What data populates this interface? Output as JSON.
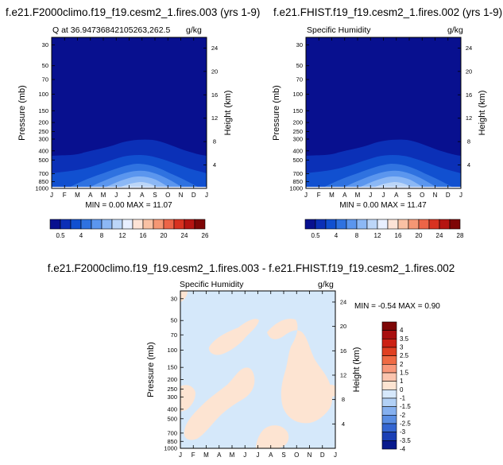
{
  "chart_data": [
    {
      "type": "heatmap",
      "title": "f.e21.F2000climo.f19_f19.cesm2_1.fires.003 (yrs 1-9)",
      "left_label": "Q at 36.947368421052​63,262.5",
      "right_label": "g/kg",
      "ylabel": "Pressure (mb)",
      "y2label": "Height (km)",
      "x_ticks": [
        "J",
        "F",
        "M",
        "A",
        "M",
        "J",
        "J",
        "A",
        "S",
        "O",
        "N",
        "D",
        "J"
      ],
      "y_ticks": [
        "30",
        "50",
        "70",
        "100",
        "150",
        "200",
        "250",
        "300",
        "400",
        "500",
        "700",
        "850",
        "1000"
      ],
      "y2_ticks": [
        "24",
        "20",
        "16",
        "12",
        "8",
        "4"
      ],
      "min_max": "MIN =   0.00 MAX =  11.07",
      "min": 0.0,
      "max": 11.07,
      "colorbar_labels": [
        "0.5",
        "4",
        "8",
        "12",
        "16",
        "20",
        "24",
        "26"
      ]
    },
    {
      "type": "heatmap",
      "title": "f.e21.FHIST.f19_f19.cesm2_1.fires.002 (yrs 1-9)",
      "left_label": "Specific Humidity",
      "right_label": "g/kg",
      "ylabel": "Pressure (mb)",
      "y2label": "Height (km)",
      "x_ticks": [
        "J",
        "F",
        "M",
        "A",
        "M",
        "J",
        "J",
        "A",
        "S",
        "O",
        "N",
        "D",
        "J"
      ],
      "y_ticks": [
        "30",
        "50",
        "70",
        "100",
        "150",
        "200",
        "250",
        "300",
        "400",
        "500",
        "700",
        "850",
        "1000"
      ],
      "y2_ticks": [
        "24",
        "20",
        "16",
        "12",
        "8",
        "4"
      ],
      "min_max": "MIN =   0.00 MAX =  11.47",
      "min": 0.0,
      "max": 11.47,
      "colorbar_labels": [
        "0.5",
        "4",
        "8",
        "12",
        "16",
        "20",
        "24",
        "28"
      ]
    },
    {
      "type": "heatmap",
      "title": "f.e21.F2000climo.f19_f19.cesm2_1.fires.003 - f.e21.FHIST.f19_f19.cesm2_1.fires.002",
      "left_label": "Specific Humidity",
      "right_label": "g/kg",
      "ylabel": "Pressure (mb)",
      "y2label": "Height (km)",
      "x_ticks": [
        "J",
        "F",
        "M",
        "A",
        "M",
        "J",
        "J",
        "A",
        "S",
        "O",
        "N",
        "D",
        "J"
      ],
      "y_ticks": [
        "30",
        "50",
        "70",
        "100",
        "150",
        "200",
        "250",
        "300",
        "400",
        "500",
        "700",
        "850",
        "1000"
      ],
      "y2_ticks": [
        "24",
        "20",
        "16",
        "12",
        "8",
        "4"
      ],
      "min_max": "MIN = -0.54 MAX =   0.90",
      "min": -0.54,
      "max": 0.9,
      "colorbar_labels": [
        "4",
        "3.5",
        "3",
        "2.5",
        "2",
        "1.5",
        "1",
        "0",
        "-1",
        "-1.5",
        "-2",
        "-2.5",
        "-3",
        "-3.5",
        "-4"
      ]
    }
  ],
  "colors": {
    "field_levels": [
      "#08108f",
      "#0b30b7",
      "#1150d0",
      "#2f72e0",
      "#5b96ee",
      "#8cb8f5",
      "#bcd6f8",
      "#e8efff",
      "#fde3d6",
      "#f9c1a4",
      "#f59774",
      "#ec6447",
      "#d83220",
      "#b51411",
      "#7e0606"
    ],
    "diff_levels": [
      "#7e0606",
      "#a80f0f",
      "#cc2114",
      "#e04022",
      "#ef6a44",
      "#f8977a",
      "#fbc4ae",
      "#fde4d2",
      "#d6e8fb",
      "#b2d1f6",
      "#85b0ef",
      "#5a8ee3",
      "#3466d2",
      "#1a3fb5",
      "#081a8d"
    ],
    "diff_background": "#d5e8fa",
    "diff_positive": "#fde4d2"
  }
}
